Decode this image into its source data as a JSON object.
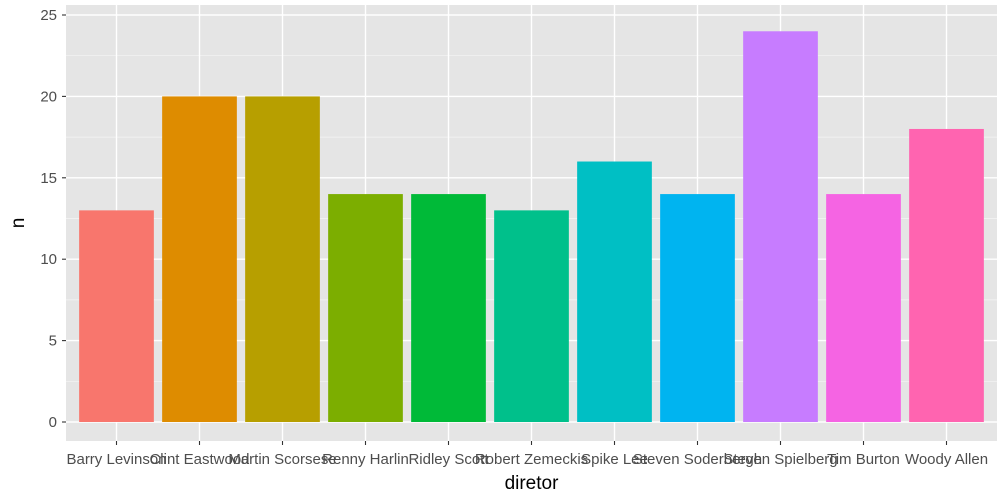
{
  "chart_data": {
    "type": "bar",
    "xlabel": "diretor",
    "ylabel": "n",
    "ylim": [
      0,
      25
    ],
    "yticks": [
      0,
      5,
      10,
      15,
      20,
      25
    ],
    "grid": true,
    "legend": "none",
    "panel_background": "#e5e5e5",
    "grid_color": "#ffffff",
    "categories": [
      "Barry Levinson",
      "Clint Eastwood",
      "Martin Scorsese",
      "Renny Harlin",
      "Ridley Scott",
      "Robert Zemeckis",
      "Spike Lee",
      "Steven Soderbergh",
      "Steven Spielberg",
      "Tim Burton",
      "Woody Allen"
    ],
    "values": [
      13,
      20,
      20,
      14,
      14,
      13,
      16,
      14,
      24,
      14,
      18
    ],
    "colors": [
      "#F8766D",
      "#DE8C00",
      "#B79F00",
      "#7CAE00",
      "#00BA38",
      "#00C08B",
      "#00BFC4",
      "#00B4F0",
      "#C77CFF",
      "#F564E3",
      "#FF64B0"
    ]
  }
}
